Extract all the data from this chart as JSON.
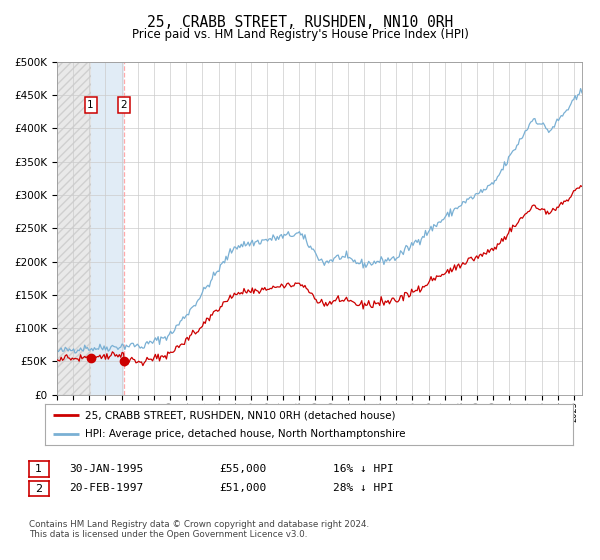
{
  "title": "25, CRABB STREET, RUSHDEN, NN10 0RH",
  "subtitle": "Price paid vs. HM Land Registry's House Price Index (HPI)",
  "title_fontsize": 10.5,
  "subtitle_fontsize": 8.5,
  "bg_color": "#ffffff",
  "plot_bg_color": "#ffffff",
  "grid_color": "#cccccc",
  "hatch_region_color": "#c8c8c8",
  "blue_region_color": "#dce9f5",
  "sale1_date_num": 1995.08,
  "sale1_price": 55000,
  "sale2_date_num": 1997.13,
  "sale2_price": 51000,
  "red_line_color": "#cc0000",
  "blue_line_color": "#7ab0d4",
  "marker_color": "#cc0000",
  "legend_entries": [
    "25, CRABB STREET, RUSHDEN, NN10 0RH (detached house)",
    "HPI: Average price, detached house, North Northamptonshire"
  ],
  "table_rows": [
    [
      "1",
      "30-JAN-1995",
      "£55,000",
      "16% ↓ HPI"
    ],
    [
      "2",
      "20-FEB-1997",
      "£51,000",
      "28% ↓ HPI"
    ]
  ],
  "footnote": "Contains HM Land Registry data © Crown copyright and database right 2024.\nThis data is licensed under the Open Government Licence v3.0.",
  "ylim": [
    0,
    500000
  ],
  "yticks": [
    0,
    50000,
    100000,
    150000,
    200000,
    250000,
    300000,
    350000,
    400000,
    450000,
    500000
  ],
  "xmin": 1993.0,
  "xmax": 2025.5,
  "xtick_start": 1993,
  "xtick_end": 2025
}
